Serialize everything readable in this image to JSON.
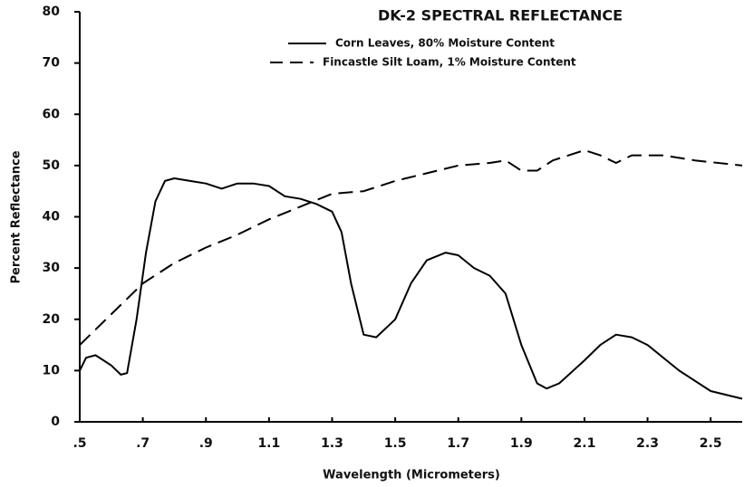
{
  "chart_data": {
    "type": "line",
    "title": "DK-2  SPECTRAL REFLECTANCE",
    "xlabel": "Wavelength (Micrometers)",
    "ylabel": "Percent Reflectance",
    "xlim": [
      0.5,
      2.6
    ],
    "ylim": [
      0,
      80
    ],
    "xticks": [
      {
        "value": 0.5,
        "label": ".5"
      },
      {
        "value": 0.7,
        "label": ".7"
      },
      {
        "value": 0.9,
        "label": ".9"
      },
      1.1,
      1.3,
      1.5,
      1.7,
      1.9,
      2.1,
      2.3,
      2.5
    ],
    "yticks": [
      0,
      10,
      20,
      30,
      40,
      50,
      60,
      70,
      80
    ],
    "series": [
      {
        "name": "Corn Leaves, 80% Moisture Content",
        "color": "#000000",
        "dash": "solid",
        "x": [
          0.5,
          0.52,
          0.55,
          0.6,
          0.63,
          0.65,
          0.68,
          0.71,
          0.74,
          0.77,
          0.8,
          0.85,
          0.9,
          0.95,
          1.0,
          1.05,
          1.1,
          1.15,
          1.2,
          1.25,
          1.3,
          1.33,
          1.36,
          1.4,
          1.44,
          1.5,
          1.55,
          1.6,
          1.66,
          1.7,
          1.75,
          1.8,
          1.85,
          1.9,
          1.95,
          1.98,
          2.02,
          2.1,
          2.15,
          2.2,
          2.25,
          2.3,
          2.4,
          2.5,
          2.6
        ],
        "values": [
          10,
          12.5,
          13,
          11,
          9.2,
          9.5,
          20,
          33,
          43,
          47,
          47.5,
          47,
          46.5,
          45.5,
          46.5,
          46.5,
          46,
          44,
          43.5,
          42.5,
          41,
          37,
          27,
          17,
          16.5,
          20,
          27,
          31.5,
          33,
          32.5,
          30,
          28.5,
          25,
          15,
          7.5,
          6.5,
          7.5,
          12,
          15,
          17,
          16.5,
          15,
          10,
          6,
          4.5
        ]
      },
      {
        "name": "Fincastle Silt Loam, 1% Moisture Content",
        "color": "#000000",
        "dash": "dashed",
        "x": [
          0.5,
          0.6,
          0.7,
          0.8,
          0.9,
          1.0,
          1.1,
          1.2,
          1.3,
          1.4,
          1.5,
          1.6,
          1.7,
          1.8,
          1.85,
          1.9,
          1.95,
          2.0,
          2.1,
          2.15,
          2.2,
          2.25,
          2.35,
          2.45,
          2.6
        ],
        "values": [
          15,
          21,
          27,
          31,
          34,
          36.5,
          39.5,
          42,
          44.5,
          45,
          47,
          48.5,
          50,
          50.5,
          51,
          49,
          49,
          51,
          53,
          52,
          50.5,
          52,
          52,
          51,
          50
        ]
      }
    ]
  }
}
